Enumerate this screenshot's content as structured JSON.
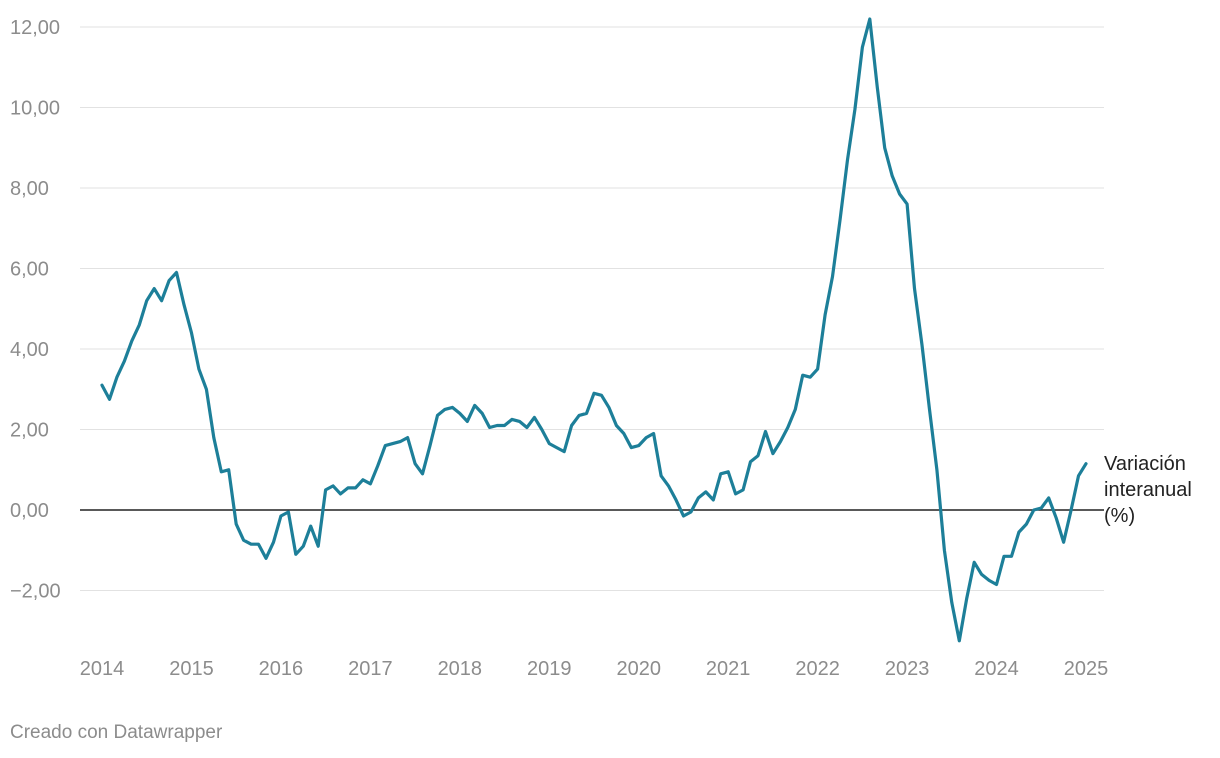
{
  "chart_data": {
    "type": "line",
    "ylim": [
      -3.3,
      12.2
    ],
    "y_ticks": [
      {
        "value": 12,
        "label": "12,00"
      },
      {
        "value": 10,
        "label": "10,00"
      },
      {
        "value": 8,
        "label": "8,00"
      },
      {
        "value": 6,
        "label": "6,00"
      },
      {
        "value": 4,
        "label": "4,00"
      },
      {
        "value": 2,
        "label": "2,00"
      },
      {
        "value": 0,
        "label": "0,00"
      },
      {
        "value": -2,
        "label": "−2,00"
      }
    ],
    "x_ticks": [
      {
        "value": 2014,
        "label": "2014"
      },
      {
        "value": 2015,
        "label": "2015"
      },
      {
        "value": 2016,
        "label": "2016"
      },
      {
        "value": 2017,
        "label": "2017"
      },
      {
        "value": 2018,
        "label": "2018"
      },
      {
        "value": 2019,
        "label": "2019"
      },
      {
        "value": 2020,
        "label": "2020"
      },
      {
        "value": 2021,
        "label": "2021"
      },
      {
        "value": 2022,
        "label": "2022"
      },
      {
        "value": 2023,
        "label": "2023"
      },
      {
        "value": 2024,
        "label": "2024"
      },
      {
        "value": 2025,
        "label": "2025"
      }
    ],
    "grid": true,
    "series": [
      {
        "name": "Variación interanual (%)",
        "label_lines": [
          "Variación",
          "interanual",
          "(%)"
        ],
        "color": "#1d7f99",
        "start": "2014-01",
        "frequency": "monthly",
        "values": [
          3.1,
          2.75,
          3.3,
          3.7,
          4.2,
          4.6,
          5.2,
          5.5,
          5.2,
          5.7,
          5.9,
          5.1,
          4.4,
          3.5,
          3.0,
          1.8,
          0.95,
          1.0,
          -0.35,
          -0.75,
          -0.85,
          -0.85,
          -1.2,
          -0.8,
          -0.15,
          -0.05,
          -1.1,
          -0.9,
          -0.4,
          -0.9,
          0.5,
          0.6,
          0.4,
          0.55,
          0.55,
          0.75,
          0.65,
          1.1,
          1.6,
          1.65,
          1.7,
          1.8,
          1.15,
          0.9,
          1.6,
          2.35,
          2.5,
          2.55,
          2.4,
          2.2,
          2.6,
          2.4,
          2.05,
          2.1,
          2.1,
          2.25,
          2.2,
          2.05,
          2.3,
          2.0,
          1.65,
          1.55,
          1.45,
          2.1,
          2.35,
          2.4,
          2.9,
          2.85,
          2.55,
          2.1,
          1.9,
          1.55,
          1.6,
          1.8,
          1.9,
          0.85,
          0.6,
          0.25,
          -0.15,
          -0.05,
          0.3,
          0.45,
          0.25,
          0.9,
          0.95,
          0.4,
          0.5,
          1.2,
          1.35,
          1.95,
          1.4,
          1.7,
          2.05,
          2.5,
          3.35,
          3.3,
          3.5,
          4.85,
          5.8,
          7.2,
          8.7,
          9.95,
          11.5,
          12.2,
          10.5,
          9.0,
          8.3,
          7.85,
          7.6,
          5.5,
          4.1,
          2.5,
          1.0,
          -1.0,
          -2.3,
          -3.25,
          -2.2,
          -1.3,
          -1.6,
          -1.75,
          -1.85,
          -1.15,
          -1.15,
          -0.55,
          -0.35,
          0.0,
          0.05,
          0.3,
          -0.2,
          -0.8,
          0.0,
          0.85,
          1.15
        ]
      }
    ]
  },
  "footer": {
    "credit": "Creado con Datawrapper"
  }
}
